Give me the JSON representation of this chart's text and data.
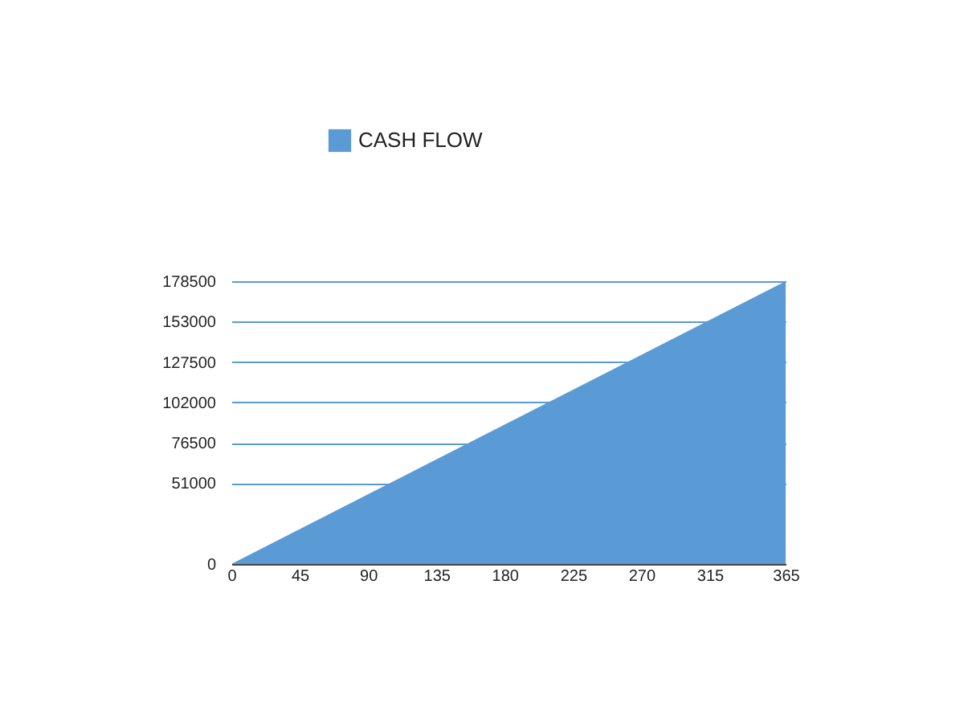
{
  "chart_data": {
    "type": "area",
    "x": [
      0,
      365
    ],
    "series": [
      {
        "name": "CASH FLOW",
        "color": "#5b9bd5",
        "values": [
          0,
          178500
        ]
      }
    ],
    "xlim": [
      0,
      365
    ],
    "xticks": [
      0,
      45,
      90,
      135,
      180,
      225,
      270,
      315,
      365
    ],
    "ylim": [
      0,
      178500
    ],
    "yticks": [
      0,
      51000,
      76500,
      102000,
      127500,
      153000,
      178500
    ],
    "grid": "y",
    "legend": "top"
  }
}
